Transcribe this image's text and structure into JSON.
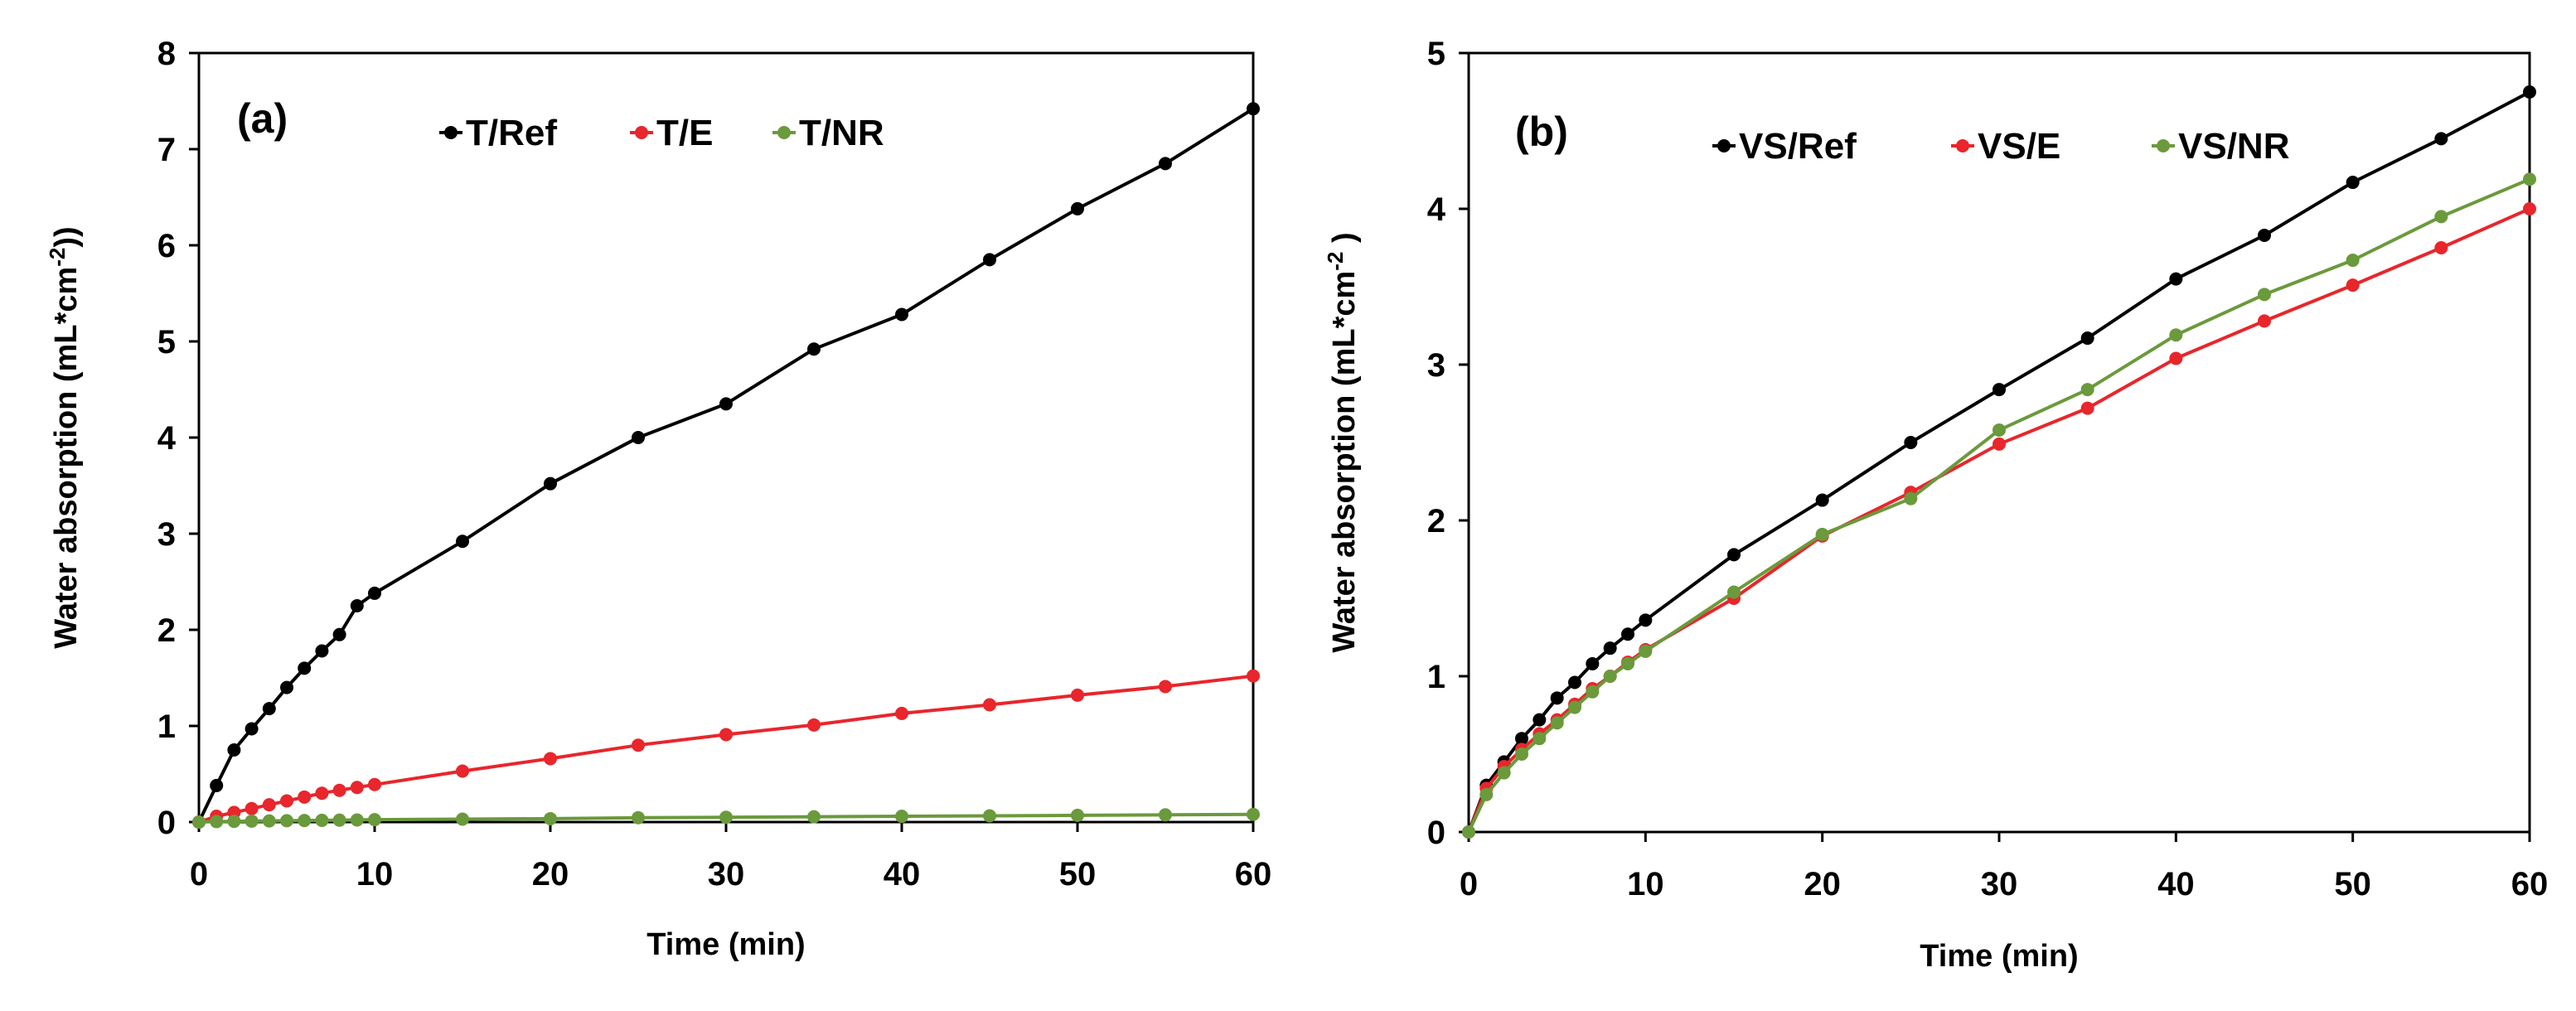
{
  "chart_data": [
    {
      "type": "line",
      "panel_label": "(a)",
      "xlabel": "Time (min)",
      "ylabel_main": "Water absorption (mL*cm",
      "ylabel_sup": "-2",
      "ylabel_end": "))",
      "xlim": [
        0,
        60
      ],
      "ylim": [
        0,
        8
      ],
      "xticks": [
        0,
        10,
        20,
        30,
        40,
        50,
        60
      ],
      "yticks": [
        0,
        1,
        2,
        3,
        4,
        5,
        6,
        7,
        8
      ],
      "grid": false,
      "legend_position": "top",
      "series": [
        {
          "name": "T/Ref",
          "color": "#000000",
          "x": [
            0,
            1,
            2,
            3,
            4,
            5,
            6,
            7,
            8,
            9,
            10,
            15,
            20,
            25,
            30,
            35,
            40,
            45,
            50,
            55,
            60
          ],
          "y": [
            0,
            0.38,
            0.75,
            0.97,
            1.18,
            1.4,
            1.6,
            1.78,
            1.95,
            2.25,
            2.38,
            2.92,
            3.52,
            4.0,
            4.35,
            4.92,
            5.28,
            5.85,
            6.38,
            6.85,
            7.42
          ]
        },
        {
          "name": "T/E",
          "color": "#e8262b",
          "x": [
            0,
            1,
            2,
            3,
            4,
            5,
            6,
            7,
            8,
            9,
            10,
            15,
            20,
            25,
            30,
            35,
            40,
            45,
            50,
            55,
            60
          ],
          "y": [
            0,
            0.06,
            0.1,
            0.14,
            0.18,
            0.22,
            0.26,
            0.3,
            0.33,
            0.36,
            0.39,
            0.53,
            0.66,
            0.8,
            0.91,
            1.01,
            1.13,
            1.22,
            1.32,
            1.41,
            1.52
          ]
        },
        {
          "name": "T/NR",
          "color": "#6a9a3c",
          "x": [
            0,
            1,
            2,
            3,
            4,
            5,
            6,
            7,
            8,
            9,
            10,
            15,
            20,
            25,
            30,
            35,
            40,
            45,
            50,
            55,
            60
          ],
          "y": [
            0,
            0.005,
            0.008,
            0.01,
            0.012,
            0.014,
            0.016,
            0.018,
            0.02,
            0.022,
            0.025,
            0.03,
            0.035,
            0.045,
            0.05,
            0.055,
            0.06,
            0.065,
            0.07,
            0.075,
            0.08
          ]
        }
      ]
    },
    {
      "type": "line",
      "panel_label": "(b)",
      "xlabel": "Time (min)",
      "ylabel_main": "Water absorption (mL*cm",
      "ylabel_sup": "-2",
      "ylabel_end": " )",
      "xlim": [
        0,
        60
      ],
      "ylim": [
        0,
        5
      ],
      "xticks": [
        0,
        10,
        20,
        30,
        40,
        50,
        60
      ],
      "yticks": [
        0,
        1,
        2,
        3,
        4,
        5
      ],
      "grid": false,
      "legend_position": "top",
      "series": [
        {
          "name": "VS/Ref",
          "color": "#000000",
          "x": [
            0,
            1,
            2,
            3,
            4,
            5,
            6,
            7,
            8,
            9,
            10,
            15,
            20,
            25,
            30,
            35,
            40,
            45,
            50,
            55,
            60
          ],
          "y": [
            0,
            0.3,
            0.45,
            0.6,
            0.72,
            0.86,
            0.96,
            1.08,
            1.18,
            1.27,
            1.36,
            1.78,
            2.13,
            2.5,
            2.84,
            3.17,
            3.55,
            3.83,
            4.17,
            4.45,
            4.75
          ]
        },
        {
          "name": "VS/E",
          "color": "#e8262b",
          "x": [
            0,
            1,
            2,
            3,
            4,
            5,
            6,
            7,
            8,
            9,
            10,
            15,
            20,
            25,
            30,
            35,
            40,
            45,
            50,
            55,
            60
          ],
          "y": [
            0,
            0.28,
            0.42,
            0.53,
            0.63,
            0.72,
            0.82,
            0.92,
            1.0,
            1.09,
            1.17,
            1.5,
            1.9,
            2.18,
            2.49,
            2.72,
            3.04,
            3.28,
            3.51,
            3.75,
            4.0
          ]
        },
        {
          "name": "VS/NR",
          "color": "#6a9a3c",
          "x": [
            0,
            1,
            2,
            3,
            4,
            5,
            6,
            7,
            8,
            9,
            10,
            15,
            20,
            25,
            30,
            35,
            40,
            45,
            50,
            55,
            60
          ],
          "y": [
            0,
            0.24,
            0.38,
            0.5,
            0.6,
            0.7,
            0.8,
            0.9,
            1.0,
            1.08,
            1.16,
            1.54,
            1.91,
            2.14,
            2.58,
            2.84,
            3.19,
            3.45,
            3.67,
            3.95,
            4.19
          ]
        }
      ]
    }
  ]
}
